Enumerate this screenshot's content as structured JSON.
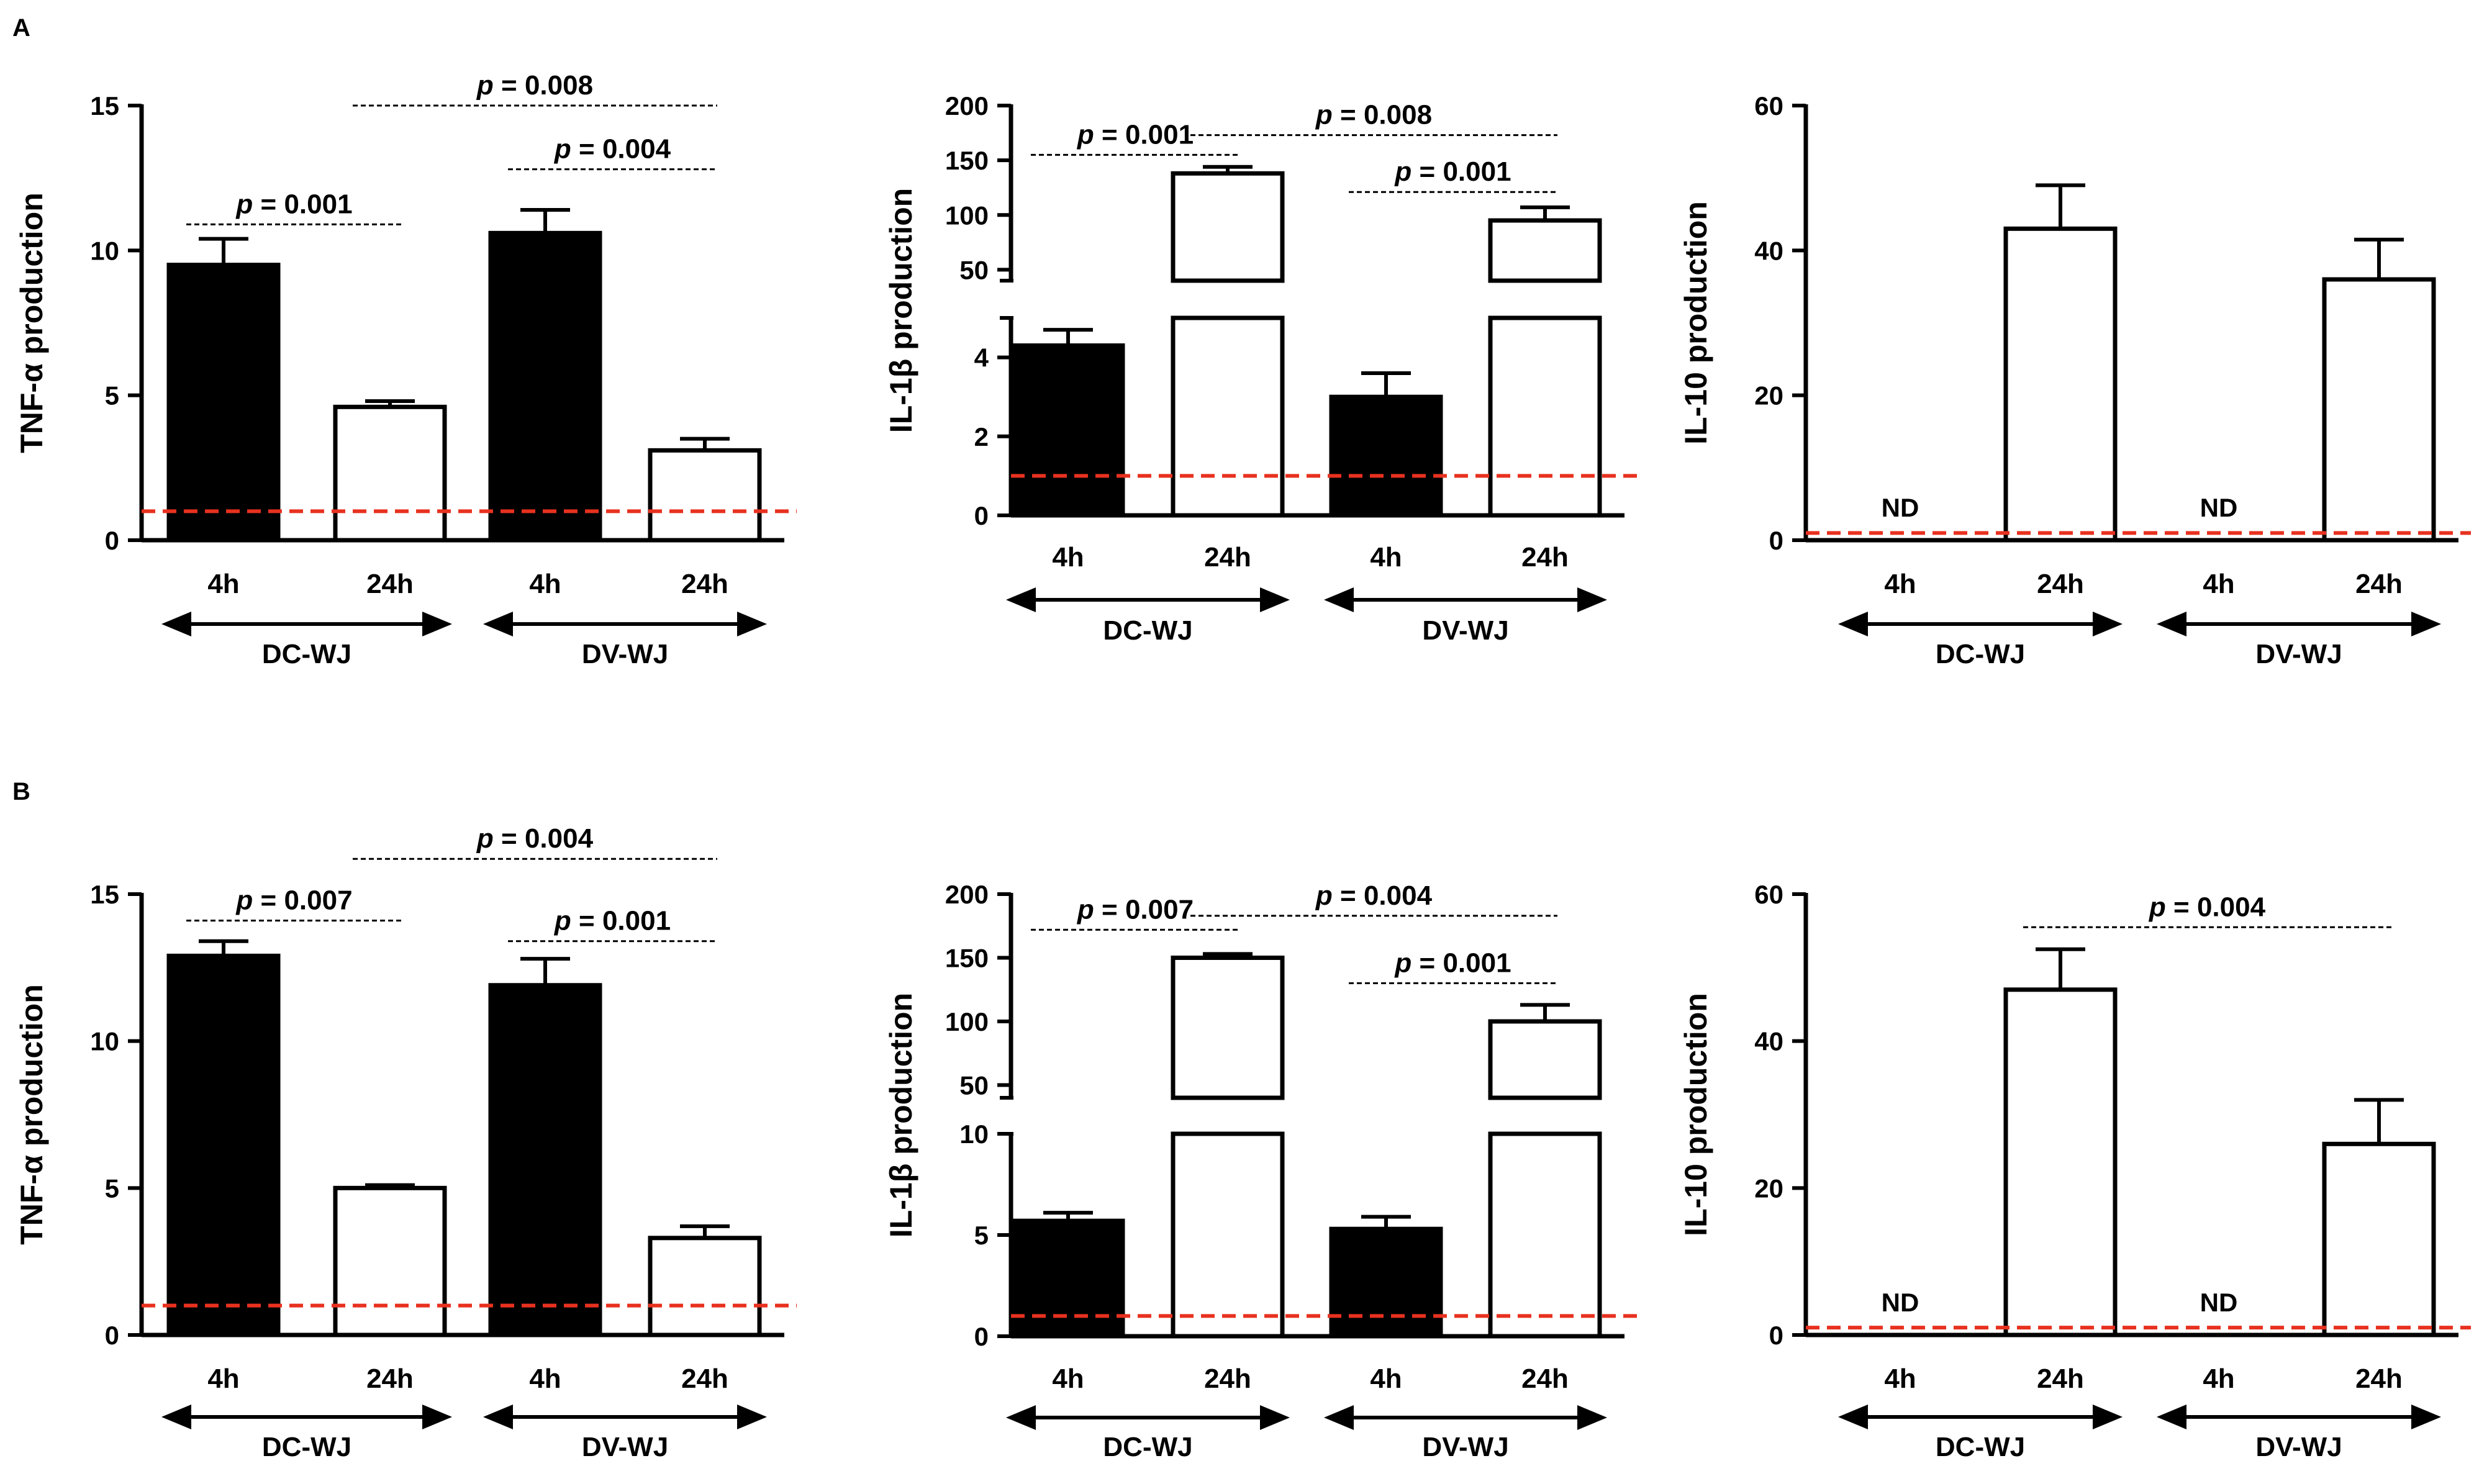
{
  "figure": {
    "panels": [
      {
        "label": "A",
        "charts": [
          0,
          1,
          2
        ]
      },
      {
        "label": "B",
        "charts": [
          3,
          4,
          5
        ]
      }
    ],
    "reference_line_color": "#e8311f",
    "bar_colors": {
      "4h": "#000000",
      "24h": "#ffffff"
    }
  },
  "chart_data": [
    {
      "id": "A1",
      "type": "bar",
      "panel": "A",
      "ylabel": "TNF-α production",
      "ylim": [
        0,
        15
      ],
      "yticks": [
        0,
        5,
        10,
        15
      ],
      "categories": [
        "4h",
        "24h",
        "4h",
        "24h"
      ],
      "groups": [
        "DC-WJ",
        "DV-WJ"
      ],
      "values": [
        9.5,
        4.6,
        10.6,
        3.1
      ],
      "errors": [
        0.9,
        0.2,
        0.8,
        0.4
      ],
      "bar_fill": [
        "black",
        "white",
        "black",
        "white"
      ],
      "bar_labels": [
        "",
        "",
        "",
        ""
      ],
      "reference_line": 1,
      "comparisons": [
        {
          "label": "p = 0.001",
          "from": 0,
          "to": 1,
          "level": 10.9
        },
        {
          "label": "p = 0.008",
          "from": 1,
          "to": 3,
          "level": 15.0
        },
        {
          "label": "p = 0.004",
          "from": 2,
          "to": 3,
          "level": 12.8
        }
      ]
    },
    {
      "id": "A2",
      "type": "bar",
      "panel": "A",
      "ylabel": "IL-1β production",
      "broken_axis": true,
      "lower": {
        "ylim": [
          0,
          5
        ],
        "yticks": [
          0,
          2,
          4
        ]
      },
      "upper": {
        "ylim": [
          40,
          200
        ],
        "yticks": [
          50,
          100,
          150,
          200
        ]
      },
      "categories": [
        "4h",
        "24h",
        "4h",
        "24h"
      ],
      "groups": [
        "DC-WJ",
        "DV-WJ"
      ],
      "values": [
        4.3,
        138,
        3.0,
        95
      ],
      "errors": [
        0.4,
        6,
        0.6,
        12
      ],
      "bar_fill": [
        "black",
        "white",
        "black",
        "white"
      ],
      "bar_labels": [
        "",
        "",
        "",
        ""
      ],
      "reference_line": 1,
      "comparisons": [
        {
          "label": "p = 0.001",
          "from": 0,
          "to": 1,
          "level": 155
        },
        {
          "label": "p = 0.008",
          "from": 1,
          "to": 3,
          "level": 173
        },
        {
          "label": "p = 0.001",
          "from": 2,
          "to": 3,
          "level": 121
        }
      ]
    },
    {
      "id": "A3",
      "type": "bar",
      "panel": "A",
      "ylabel": "IL-10 production",
      "ylim": [
        0,
        60
      ],
      "yticks": [
        0,
        20,
        40,
        60
      ],
      "categories": [
        "4h",
        "24h",
        "4h",
        "24h"
      ],
      "groups": [
        "DC-WJ",
        "DV-WJ"
      ],
      "values": [
        0,
        43,
        0,
        36
      ],
      "errors": [
        0,
        6,
        0,
        5.5
      ],
      "bar_fill": [
        "none",
        "white",
        "none",
        "white"
      ],
      "bar_labels": [
        "ND",
        "",
        "ND",
        ""
      ],
      "reference_line": 1,
      "comparisons": []
    },
    {
      "id": "B1",
      "type": "bar",
      "panel": "B",
      "ylabel": "TNF-α production",
      "ylim": [
        0,
        15
      ],
      "yticks": [
        0,
        5,
        10,
        15
      ],
      "categories": [
        "4h",
        "24h",
        "4h",
        "24h"
      ],
      "groups": [
        "DC-WJ",
        "DV-WJ"
      ],
      "values": [
        12.9,
        5.0,
        11.9,
        3.3
      ],
      "errors": [
        0.5,
        0.1,
        0.9,
        0.4
      ],
      "bar_fill": [
        "black",
        "white",
        "black",
        "white"
      ],
      "bar_labels": [
        "",
        "",
        "",
        ""
      ],
      "reference_line": 1,
      "comparisons": [
        {
          "label": "p = 0.007",
          "from": 0,
          "to": 1,
          "level": 14.1
        },
        {
          "label": "p = 0.004",
          "from": 1,
          "to": 3,
          "level": 16.2
        },
        {
          "label": "p = 0.001",
          "from": 2,
          "to": 3,
          "level": 13.4
        }
      ]
    },
    {
      "id": "B2",
      "type": "bar",
      "panel": "B",
      "ylabel": "IL-1β production",
      "broken_axis": true,
      "lower": {
        "ylim": [
          0,
          10
        ],
        "yticks": [
          0,
          5,
          10
        ]
      },
      "upper": {
        "ylim": [
          40,
          200
        ],
        "yticks": [
          50,
          100,
          150,
          200
        ]
      },
      "categories": [
        "4h",
        "24h",
        "4h",
        "24h"
      ],
      "groups": [
        "DC-WJ",
        "DV-WJ"
      ],
      "values": [
        5.7,
        150,
        5.3,
        100
      ],
      "errors": [
        0.4,
        3,
        0.6,
        13
      ],
      "bar_fill": [
        "black",
        "white",
        "black",
        "white"
      ],
      "bar_labels": [
        "",
        "",
        "",
        ""
      ],
      "reference_line": 1,
      "comparisons": [
        {
          "label": "p = 0.007",
          "from": 0,
          "to": 1,
          "level": 172
        },
        {
          "label": "p = 0.004",
          "from": 1,
          "to": 3,
          "level": 183
        },
        {
          "label": "p = 0.001",
          "from": 2,
          "to": 3,
          "level": 130
        }
      ]
    },
    {
      "id": "B3",
      "type": "bar",
      "panel": "B",
      "ylabel": "IL-10 production",
      "ylim": [
        0,
        60
      ],
      "yticks": [
        0,
        20,
        40,
        60
      ],
      "categories": [
        "4h",
        "24h",
        "4h",
        "24h"
      ],
      "groups": [
        "DC-WJ",
        "DV-WJ"
      ],
      "values": [
        0,
        47,
        0,
        26
      ],
      "errors": [
        0,
        5.5,
        0,
        6
      ],
      "bar_fill": [
        "none",
        "white",
        "none",
        "white"
      ],
      "bar_labels": [
        "ND",
        "",
        "ND",
        ""
      ],
      "reference_line": 1,
      "comparisons": [
        {
          "label": "p = 0.004",
          "from": 1,
          "to": 3,
          "level": 55.5
        }
      ]
    }
  ]
}
